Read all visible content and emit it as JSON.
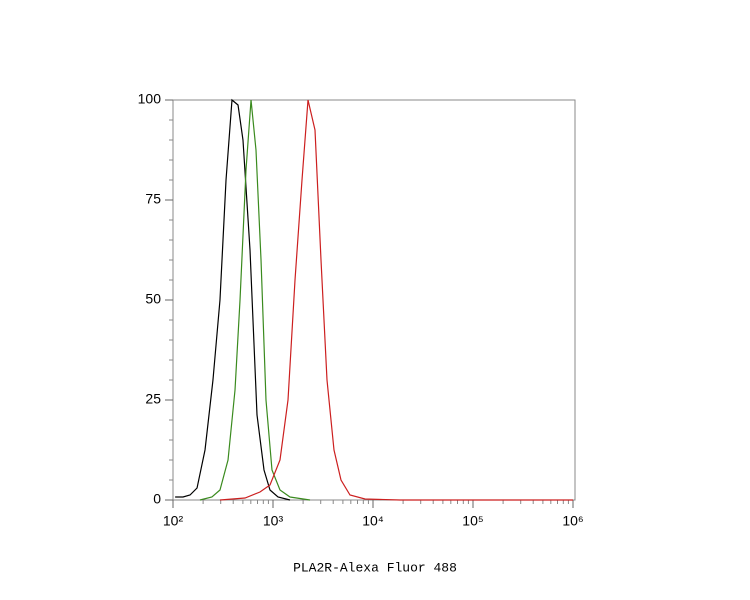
{
  "chart_data": {
    "type": "line",
    "x_label": "PLA2R-Alexa Fluor 488",
    "log_x": true,
    "xlim": [
      100,
      1000000
    ],
    "xticks": [
      {
        "value": 100,
        "label": "10²"
      },
      {
        "value": 1000,
        "label": "10³"
      },
      {
        "value": 10000,
        "label": "10⁴"
      },
      {
        "value": 100000,
        "label": "10⁵"
      },
      {
        "value": 1000000,
        "label": "10⁶"
      }
    ],
    "ylim": [
      0,
      100
    ],
    "yticks": [
      0,
      25,
      50,
      75,
      100
    ],
    "series": [
      {
        "color": "#000000",
        "x": [
          105,
          126,
          148,
          174,
          209,
          251,
          295,
          339,
          389,
          447,
          501,
          589,
          692,
          813,
          933,
          1122,
          1479
        ],
        "values": [
          0.75,
          0.75,
          1.25,
          3,
          12.5,
          30,
          50,
          80,
          100,
          98.75,
          90,
          62.5,
          21.25,
          7.5,
          2.5,
          0.75,
          0
        ]
      },
      {
        "color": "#3a8a1e",
        "x": [
          186,
          245,
          295,
          355,
          417,
          468,
          537,
          603,
          676,
          759,
          851,
          977,
          1175,
          1479,
          2344
        ],
        "values": [
          0,
          0.75,
          2.5,
          10,
          27.5,
          50,
          82.5,
          100,
          87.5,
          60,
          25,
          7.5,
          2.5,
          0.75,
          0
        ]
      },
      {
        "color": "#cc1f1f",
        "x": [
          295,
          525,
          741,
          933,
          1175,
          1413,
          1660,
          1950,
          2239,
          2630,
          3020,
          3467,
          4074,
          4786,
          5888,
          8318,
          18621,
          1000000
        ],
        "values": [
          0,
          0.5,
          2,
          3.75,
          10,
          25,
          55,
          80,
          100,
          92.5,
          60,
          30,
          12.5,
          5,
          1.25,
          0.25,
          0,
          0
        ]
      }
    ]
  }
}
